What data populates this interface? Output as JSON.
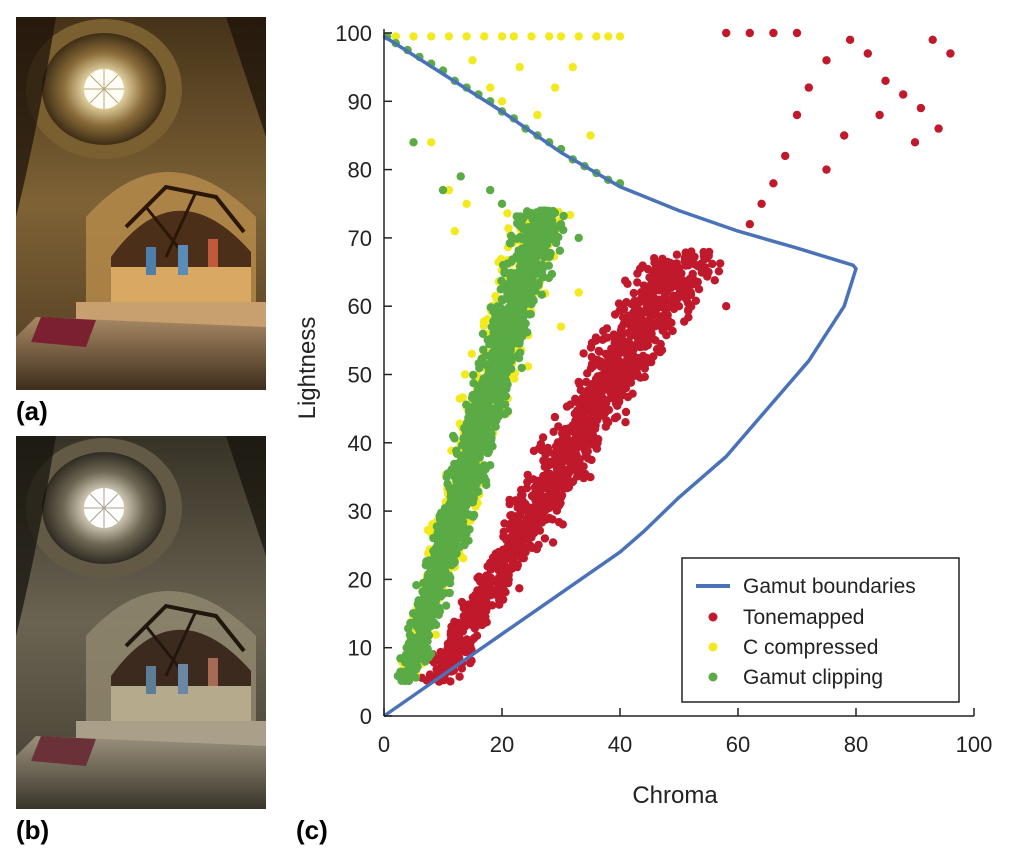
{
  "panels": {
    "a_label": "(a)",
    "b_label": "(b)",
    "c_label": "(c)"
  },
  "images": {
    "a": {
      "description_icon": "church-interior-photo-warm"
    },
    "b": {
      "description_icon": "church-interior-photo-desaturated"
    }
  },
  "colors": {
    "gamut": "#4a72b8",
    "tonemapped": "#c0192c",
    "compressed": "#f2ea1e",
    "clipping": "#5aab45"
  },
  "chart_data": {
    "type": "scatter",
    "xlabel": "Chroma",
    "ylabel": "Lightness",
    "xlim": [
      0,
      100
    ],
    "ylim": [
      0,
      100
    ],
    "xticks": [
      0,
      20,
      40,
      60,
      80,
      100
    ],
    "yticks": [
      0,
      10,
      20,
      30,
      40,
      50,
      60,
      70,
      80,
      90,
      100
    ],
    "legend_position": "bottom-right",
    "series": [
      {
        "name": "Gamut boundaries",
        "kind": "line",
        "x": [
          0,
          10,
          20,
          30,
          40,
          50,
          60,
          70,
          79.5,
          80,
          78,
          72,
          65,
          58,
          50,
          44,
          40,
          30,
          20,
          10,
          0
        ],
        "y": [
          99.5,
          94,
          88.5,
          82.5,
          77.5,
          74,
          71,
          68.5,
          66,
          65.5,
          60,
          52,
          45,
          38,
          32,
          27,
          24,
          18,
          12,
          6,
          0
        ]
      },
      {
        "name": "Tonemapped",
        "kind": "points",
        "band": {
          "ymin": 5,
          "ymax": 68,
          "x_at_ymin": 9,
          "x_at_ymax": 51,
          "spread": 12
        },
        "x": [
          10,
          13,
          16,
          20,
          24,
          28,
          30,
          33,
          36,
          38,
          41,
          44,
          46,
          48,
          50,
          52,
          55,
          58,
          62,
          64,
          66,
          68,
          70,
          72,
          75,
          79,
          82,
          85,
          88,
          91,
          94,
          96,
          70,
          66,
          62,
          58,
          75,
          78,
          84,
          90,
          93
        ],
        "y": [
          7,
          11,
          15,
          20,
          24,
          29,
          32,
          36,
          40,
          43,
          48,
          52,
          55,
          57,
          60,
          62,
          65,
          60,
          72,
          75,
          78,
          82,
          88,
          92,
          96,
          99,
          97,
          93,
          91,
          89,
          86,
          97,
          100,
          100,
          100,
          100,
          80,
          85,
          88,
          84,
          99
        ]
      },
      {
        "name": "C compressed",
        "kind": "points",
        "band": {
          "ymin": 6,
          "ymax": 74,
          "x_at_ymin": 4,
          "x_at_ymax": 27,
          "spread": 9
        },
        "x": [
          2,
          5,
          8,
          11,
          14,
          17,
          20,
          22,
          25,
          28,
          30,
          33,
          36,
          38,
          40,
          15,
          18,
          20,
          23,
          26,
          29,
          32,
          35,
          8,
          11,
          14,
          12,
          26,
          30,
          33
        ],
        "y": [
          99.5,
          99.5,
          99.5,
          99.5,
          99.5,
          99.5,
          99.5,
          99.5,
          99.5,
          99.5,
          99.5,
          99.5,
          99.5,
          99.5,
          99.5,
          96,
          92,
          90,
          95,
          88,
          92,
          95,
          85,
          84,
          77,
          75,
          71,
          63,
          57,
          62
        ]
      },
      {
        "name": "Gamut clipping",
        "kind": "points",
        "band": {
          "ymin": 5,
          "ymax": 74,
          "x_at_ymin": 4,
          "x_at_ymax": 27,
          "spread": 8
        },
        "x": [
          0.5,
          2,
          4,
          6,
          8,
          10,
          12,
          14,
          16,
          18,
          20,
          22,
          24,
          26,
          28,
          30,
          32,
          34,
          36,
          38,
          40,
          5,
          10,
          13,
          18,
          20,
          30,
          33
        ],
        "y": [
          99.5,
          98.5,
          97.5,
          96.5,
          95.5,
          94.5,
          93,
          92,
          91,
          90,
          88.5,
          87.5,
          86,
          85,
          84,
          83,
          81.5,
          80.5,
          79.5,
          78.5,
          78,
          84,
          77,
          79,
          77,
          75,
          72,
          70
        ]
      }
    ]
  }
}
